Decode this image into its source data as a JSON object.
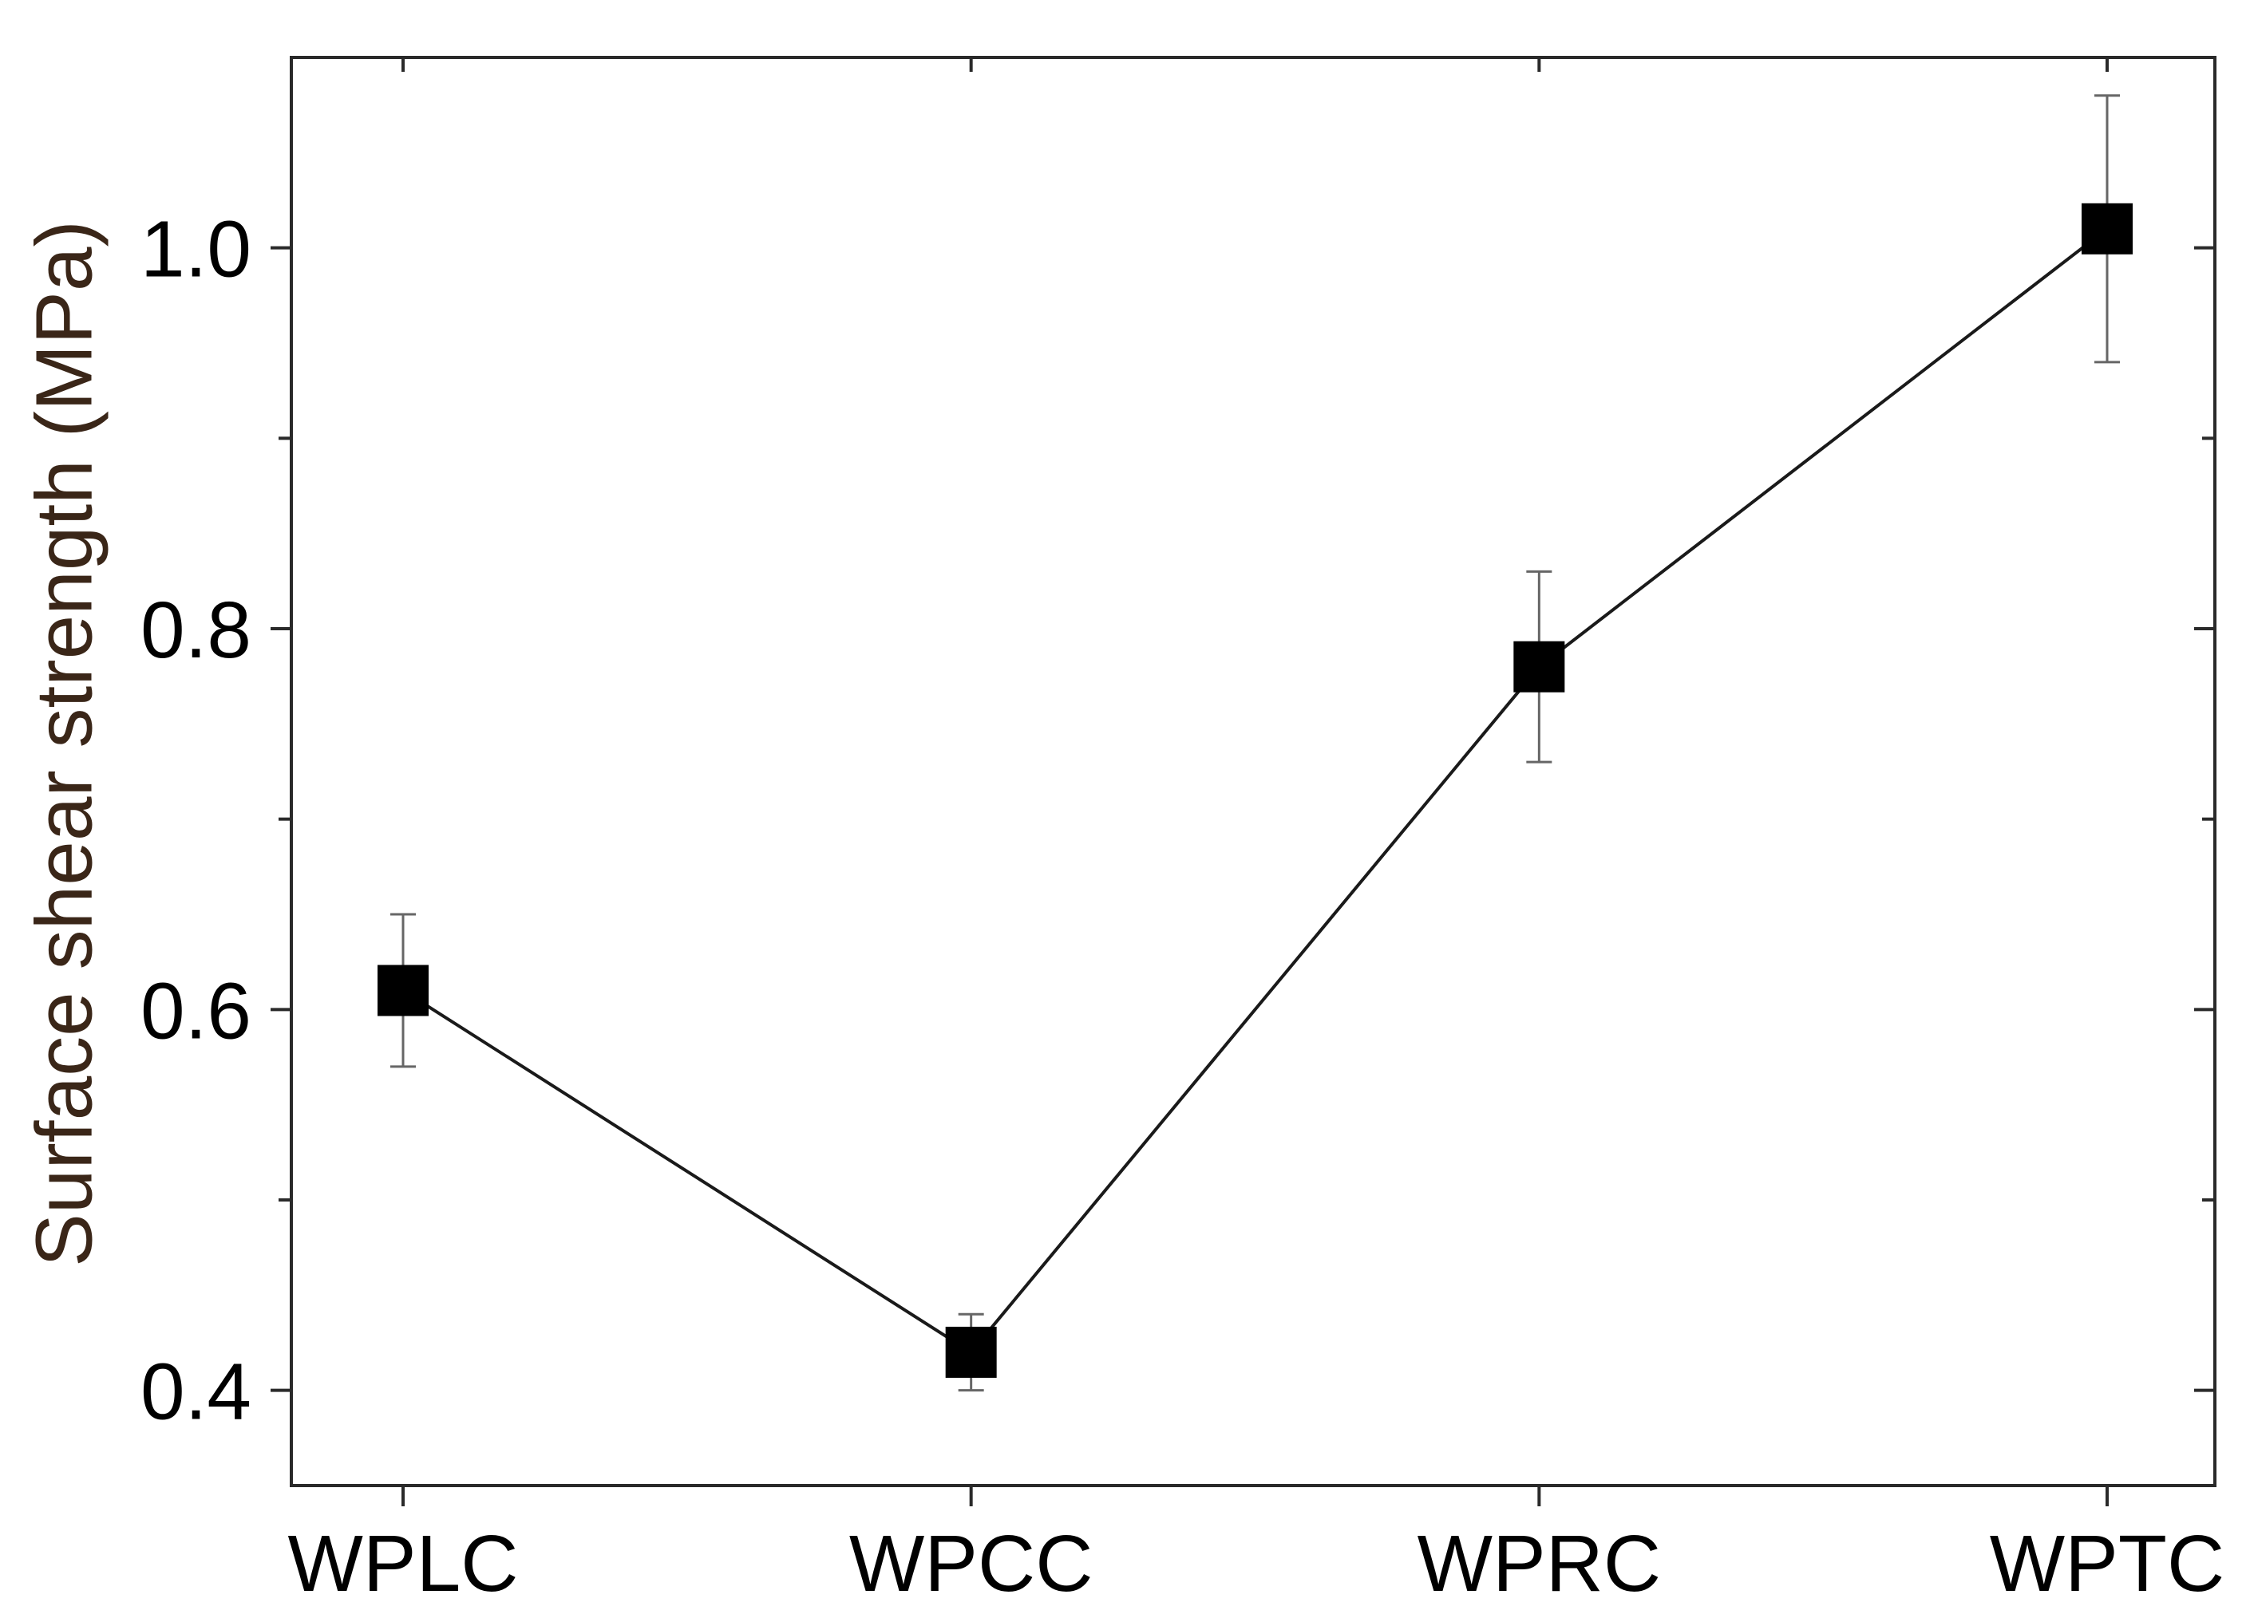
{
  "chart_data": {
    "type": "line",
    "categories": [
      "WPLC",
      "WPCC",
      "WPRC",
      "WPTC"
    ],
    "series": [
      {
        "values": [
          0.61,
          0.42,
          0.78,
          1.01
        ],
        "error_low": [
          0.57,
          0.4,
          0.73,
          0.94
        ],
        "error_high": [
          0.65,
          0.44,
          0.83,
          1.08
        ],
        "marker": "square",
        "color": "#000000"
      }
    ],
    "title": "",
    "xlabel": "",
    "ylabel": "Surface shear strength (MPa)",
    "ylim": [
      0.35,
      1.1
    ],
    "yticks": [
      0.4,
      0.6,
      0.8,
      1.0
    ],
    "ytick_labels": [
      "0.4",
      "0.6",
      "0.8",
      "1.0"
    ],
    "yminor_ticks": [
      0.5,
      0.7,
      0.9
    ],
    "grid": false,
    "legend": "none"
  }
}
